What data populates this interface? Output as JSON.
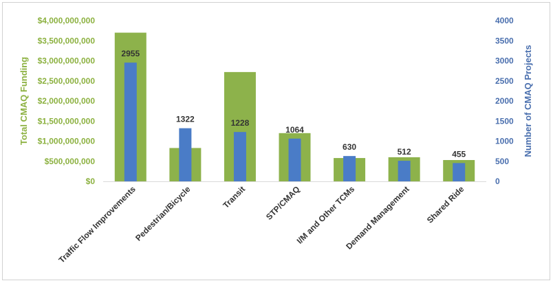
{
  "chart_data": {
    "type": "bar",
    "categories": [
      "Traffic Flow Improvements",
      "Pedestrian/Bicycle",
      "Transit",
      "STP/CMAQ",
      "I/M and Other TCMs",
      "Demand Management",
      "Shared Ride"
    ],
    "series": [
      {
        "name": "Total CMAQ Funding",
        "axis": "left",
        "color": "#8db24b",
        "values": [
          3700000000,
          830000000,
          2720000000,
          1200000000,
          580000000,
          600000000,
          530000000
        ]
      },
      {
        "name": "Number of CMAQ Projects",
        "axis": "right",
        "color": "#4a7cc7",
        "values": [
          2955,
          1322,
          1228,
          1064,
          630,
          512,
          455
        ],
        "data_labels": [
          "2955",
          "1322",
          "1228",
          "1064",
          "630",
          "512",
          "455"
        ]
      }
    ],
    "ylabel_left": "Total CMAQ Funding",
    "ylabel_right": "Number of CMAQ Projects",
    "ylim_left": [
      0,
      4000000000
    ],
    "ylim_right": [
      0,
      4000
    ],
    "yticks_left": [
      "$0",
      "$500,000,000",
      "$1,000,000,000",
      "$1,500,000,000",
      "$2,000,000,000",
      "$2,500,000,000",
      "$3,000,000,000",
      "$3,500,000,000",
      "$4,000,000,000"
    ],
    "yticks_right": [
      "0",
      "500",
      "1000",
      "1500",
      "2000",
      "2500",
      "3000",
      "3500",
      "4000"
    ],
    "grid": false,
    "legend": "none"
  }
}
